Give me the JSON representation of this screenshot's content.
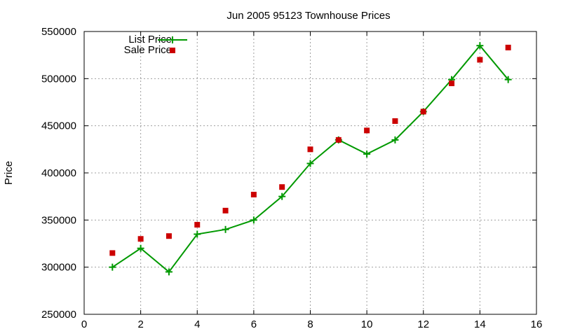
{
  "chart_data": {
    "type": "line",
    "title": "Jun 2005 95123 Townhouse Prices",
    "xlabel": "",
    "ylabel": "Price",
    "xlim": [
      0,
      16
    ],
    "ylim": [
      250000,
      550000
    ],
    "xticks": [
      0,
      2,
      4,
      6,
      8,
      10,
      12,
      14,
      16
    ],
    "yticks": [
      250000,
      300000,
      350000,
      400000,
      450000,
      500000,
      550000
    ],
    "grid": true,
    "legend_position": "top-left",
    "series": [
      {
        "name": "List Price",
        "style": "line-with-plus-markers",
        "color": "#009900",
        "x": [
          1,
          2,
          3,
          4,
          5,
          6,
          7,
          8,
          9,
          10,
          11,
          12,
          13,
          14,
          15
        ],
        "y": [
          300000,
          320000,
          295000,
          335000,
          340000,
          350000,
          375000,
          410000,
          435000,
          420000,
          435000,
          465000,
          499000,
          535000,
          499000
        ]
      },
      {
        "name": "Sale Price",
        "style": "square-markers",
        "color": "#cc0000",
        "x": [
          1,
          2,
          3,
          4,
          5,
          6,
          7,
          8,
          9,
          10,
          11,
          12,
          13,
          14,
          15
        ],
        "y": [
          315000,
          330000,
          333000,
          345000,
          360000,
          377000,
          385000,
          425000,
          435000,
          445000,
          455000,
          465000,
          495000,
          520000,
          533000
        ]
      }
    ]
  }
}
